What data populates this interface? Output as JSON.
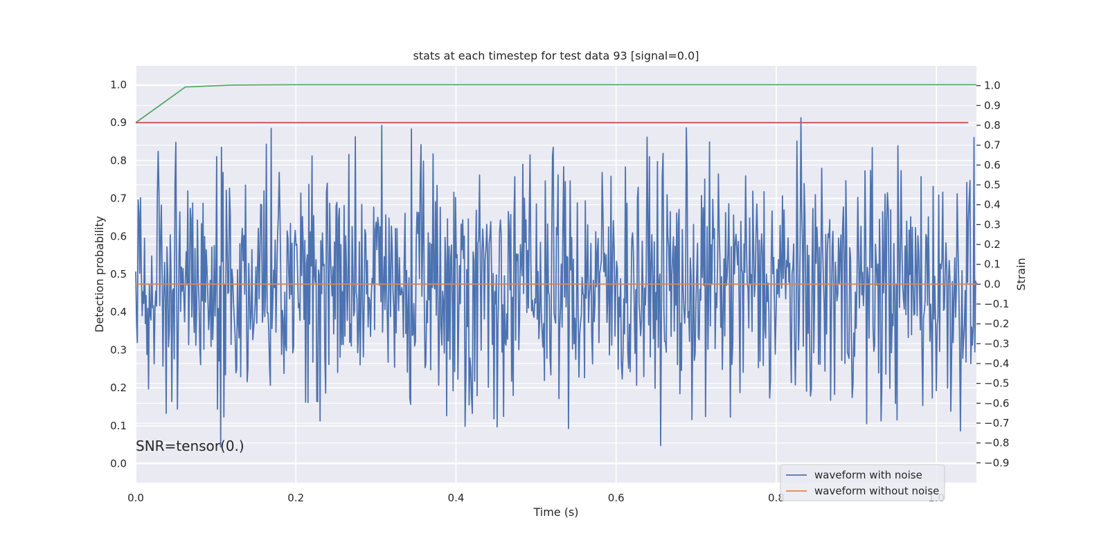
{
  "chart_data": {
    "type": "line",
    "title": "stats at each timestep for test data 93 [signal=0.0]",
    "xlabel": "Time (s)",
    "ylabel_left": "Detection probability",
    "ylabel_right": "Strain",
    "xlim": [
      0.0,
      1.05
    ],
    "ylim_left": [
      -0.05,
      1.05
    ],
    "ylim_right": [
      -1.0,
      1.1
    ],
    "x_ticks": [
      "0.0",
      "0.2",
      "0.4",
      "0.6",
      "0.8",
      "1.0"
    ],
    "x_tick_values": [
      0.0,
      0.2,
      0.4,
      0.6,
      0.8,
      1.0
    ],
    "y_left_ticks": [
      "0.0",
      "0.1",
      "0.2",
      "0.3",
      "0.4",
      "0.5",
      "0.6",
      "0.7",
      "0.8",
      "0.9",
      "1.0"
    ],
    "y_left_tick_values": [
      0.0,
      0.1,
      0.2,
      0.3,
      0.4,
      0.5,
      0.6,
      0.7,
      0.8,
      0.9,
      1.0
    ],
    "y_right_ticks": [
      "−0.9",
      "−0.8",
      "−0.7",
      "−0.6",
      "−0.5",
      "−0.4",
      "−0.3",
      "−0.2",
      "−0.1",
      "0.0",
      "0.1",
      "0.2",
      "0.3",
      "0.4",
      "0.5",
      "0.6",
      "0.7",
      "0.8",
      "0.9",
      "1.0"
    ],
    "y_right_tick_values": [
      -0.9,
      -0.8,
      -0.7,
      -0.6,
      -0.5,
      -0.4,
      -0.3,
      -0.2,
      -0.1,
      0.0,
      0.1,
      0.2,
      0.3,
      0.4,
      0.5,
      0.6,
      0.7,
      0.8,
      0.9,
      1.0
    ],
    "grid": true,
    "legend_position": "bottom-right",
    "annotation": "SNR=tensor(0.)",
    "series": [
      {
        "name": "waveform with noise",
        "axis": "right",
        "color": "#4c72b0",
        "n_points": 1050,
        "x_range": [
          0.0,
          1.05
        ],
        "y_min": -0.88,
        "y_max": 0.84,
        "description_hidden": true
      },
      {
        "name": "waveform without noise",
        "axis": "right",
        "color": "#dd8452",
        "x": [
          0.0,
          1.05
        ],
        "y": [
          0.0,
          0.0
        ]
      },
      {
        "axis": "left",
        "color": "#55a868",
        "x": [
          0.0,
          0.062,
          0.12,
          0.2,
          1.05
        ],
        "y": [
          0.9,
          0.994,
          0.999,
          1.0,
          1.0
        ]
      },
      {
        "axis": "left",
        "color": "#c44e52",
        "x": [
          0.0,
          1.04
        ],
        "y": [
          0.9,
          0.9
        ]
      }
    ],
    "legend": [
      {
        "label": "waveform with noise",
        "color": "#4c72b0"
      },
      {
        "label": "waveform without noise",
        "color": "#dd8452"
      }
    ],
    "plot_bg": "#eaeaf2",
    "grid_color": "#ffffff"
  }
}
